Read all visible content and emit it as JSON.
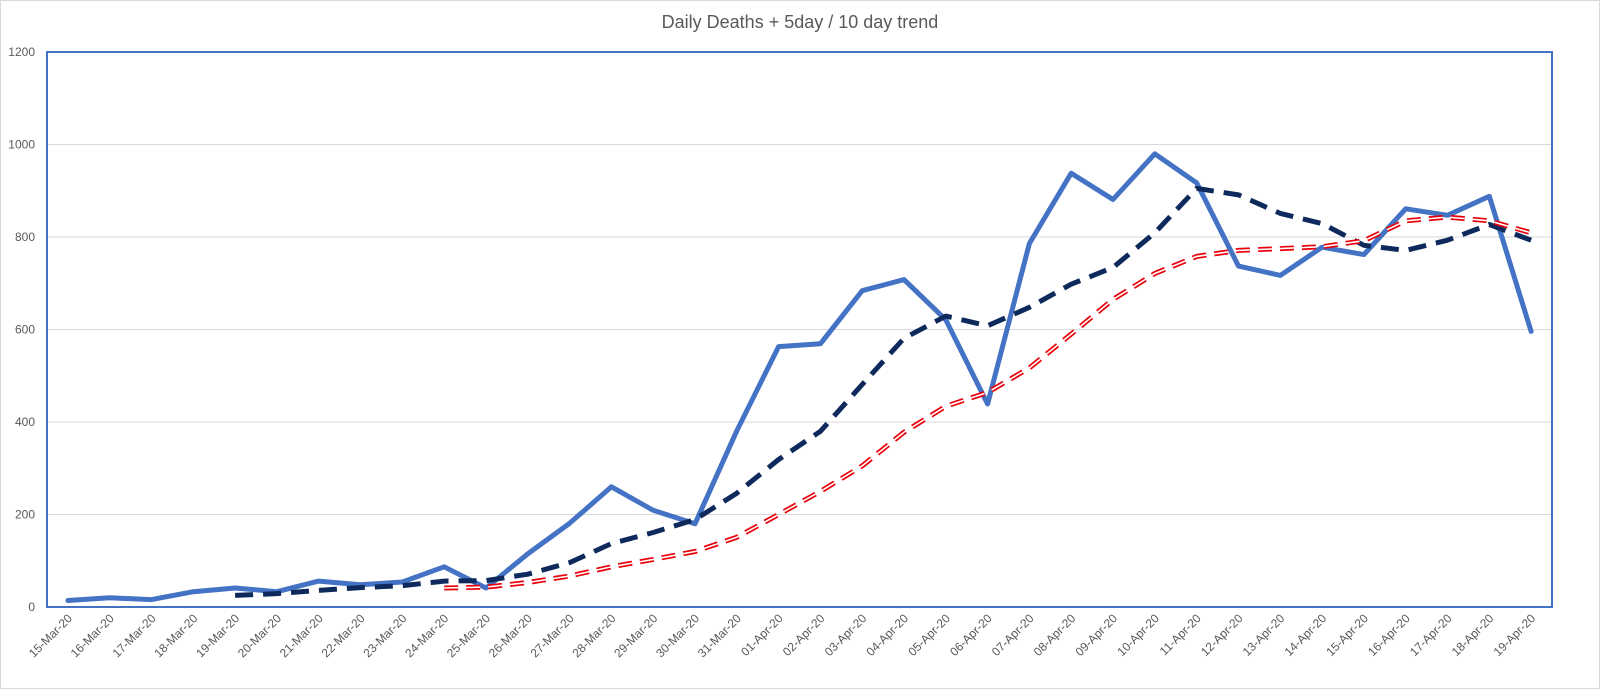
{
  "chart_data": {
    "type": "line",
    "title": "Daily Deaths + 5day / 10 day trend",
    "xlabel": "",
    "ylabel": "",
    "ylim": [
      0,
      1200
    ],
    "yticks": [
      "0",
      "200",
      "400",
      "600",
      "800",
      "1000",
      "1200"
    ],
    "grid": true,
    "legend": "none",
    "categories": [
      "15-Mar-20",
      "16-Mar-20",
      "17-Mar-20",
      "18-Mar-20",
      "19-Mar-20",
      "20-Mar-20",
      "21-Mar-20",
      "22-Mar-20",
      "23-Mar-20",
      "24-Mar-20",
      "25-Mar-20",
      "26-Mar-20",
      "27-Mar-20",
      "28-Mar-20",
      "29-Mar-20",
      "30-Mar-20",
      "31-Mar-20",
      "01-Apr-20",
      "02-Apr-20",
      "03-Apr-20",
      "04-Apr-20",
      "05-Apr-20",
      "06-Apr-20",
      "07-Apr-20",
      "08-Apr-20",
      "09-Apr-20",
      "10-Apr-20",
      "11-Apr-20",
      "12-Apr-20",
      "13-Apr-20",
      "14-Apr-20",
      "15-Apr-20",
      "16-Apr-20",
      "17-Apr-20",
      "18-Apr-20",
      "19-Apr-20"
    ],
    "series": [
      {
        "style": "solid",
        "color": "#4472c4",
        "values": [
          14,
          20,
          16,
          33,
          41,
          33,
          56,
          48,
          54,
          87,
          41,
          115,
          181,
          260,
          209,
          180,
          381,
          563,
          569,
          684,
          708,
          621,
          439,
          786,
          938,
          881,
          980,
          917,
          737,
          717,
          778,
          762,
          861,
          847,
          888,
          596
        ]
      },
      {
        "style": "dashed",
        "color": "#0e2a5c",
        "values": [
          null,
          null,
          null,
          null,
          25,
          29,
          36,
          42,
          46,
          56,
          57,
          71,
          96,
          137,
          161,
          189,
          246,
          319,
          380,
          481,
          581,
          629,
          608,
          648,
          698,
          734,
          809,
          905,
          891,
          851,
          829,
          782,
          771,
          793,
          827,
          793
        ]
      },
      {
        "style": "double-dashed",
        "color": "#e8000b",
        "values": [
          null,
          null,
          null,
          null,
          null,
          null,
          null,
          null,
          null,
          41,
          43,
          53,
          67,
          87,
          103,
          120,
          151,
          200,
          250,
          305,
          378,
          434,
          464,
          517,
          590,
          665,
          721,
          758,
          771,
          775,
          779,
          792,
          835,
          843,
          835,
          809
        ]
      }
    ]
  }
}
